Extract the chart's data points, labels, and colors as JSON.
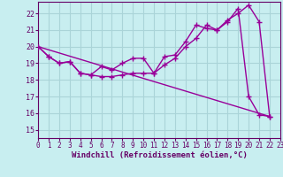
{
  "xlabel": "Windchill (Refroidissement éolien,°C)",
  "bg_color": "#c8eef0",
  "grid_color": "#aad4d8",
  "line_color": "#990099",
  "xlim": [
    0,
    23
  ],
  "ylim": [
    14.5,
    22.7
  ],
  "xticks": [
    0,
    1,
    2,
    3,
    4,
    5,
    6,
    7,
    8,
    9,
    10,
    11,
    12,
    13,
    14,
    15,
    16,
    17,
    18,
    19,
    20,
    21,
    22,
    23
  ],
  "yticks": [
    15,
    16,
    17,
    18,
    19,
    20,
    21,
    22
  ],
  "series1_x": [
    0,
    1,
    2,
    3,
    4,
    5,
    6,
    7,
    8,
    9,
    10,
    11,
    12,
    13,
    14,
    15,
    16,
    17,
    18,
    19,
    20,
    21,
    22
  ],
  "series1_y": [
    20.0,
    19.4,
    19.0,
    19.1,
    18.4,
    18.3,
    18.2,
    18.2,
    18.3,
    18.4,
    18.4,
    18.4,
    18.9,
    19.3,
    20.0,
    20.5,
    21.3,
    21.0,
    21.6,
    22.0,
    22.5,
    21.5,
    15.8
  ],
  "series2_x": [
    0,
    1,
    2,
    3,
    4,
    5,
    6,
    7,
    8,
    9,
    10,
    11,
    12,
    13,
    14,
    15,
    16,
    17,
    18,
    19,
    20,
    21,
    22
  ],
  "series2_y": [
    20.0,
    19.4,
    19.0,
    19.1,
    18.4,
    18.3,
    18.8,
    18.6,
    19.0,
    19.3,
    19.3,
    18.4,
    19.4,
    19.5,
    20.3,
    21.3,
    21.1,
    21.0,
    21.5,
    22.3,
    17.0,
    15.9,
    15.8
  ],
  "series3_x": [
    0,
    22
  ],
  "series3_y": [
    20.0,
    15.8
  ],
  "marker": "+",
  "marker_size": 4,
  "linewidth": 1.0
}
